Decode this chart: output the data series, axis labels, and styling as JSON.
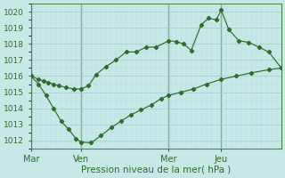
{
  "xlabel": "Pression niveau de la mer( hPa )",
  "background_color": "#c8e8e8",
  "grid_color_major": "#a0cccc",
  "grid_color_minor": "#b4dcdc",
  "line_color": "#2d6e2d",
  "ylim": [
    1011.5,
    1020.5
  ],
  "xlim": [
    0,
    100
  ],
  "yticks": [
    1012,
    1013,
    1014,
    1015,
    1016,
    1017,
    1018,
    1019,
    1020
  ],
  "day_positions": [
    0,
    20,
    55,
    76
  ],
  "day_labels": [
    "Mar",
    "Ven",
    "Mer",
    "Jeu"
  ],
  "upper_x": [
    0,
    3,
    5,
    7,
    9,
    11,
    14,
    17,
    20,
    23,
    26,
    30,
    34,
    38,
    42,
    46,
    50,
    55,
    58,
    61,
    64,
    68,
    71,
    74,
    76,
    79,
    83,
    87,
    91,
    95,
    100
  ],
  "upper_y": [
    1016.0,
    1015.8,
    1015.7,
    1015.6,
    1015.5,
    1015.4,
    1015.3,
    1015.2,
    1015.2,
    1015.4,
    1016.1,
    1016.6,
    1017.0,
    1017.5,
    1017.5,
    1017.8,
    1017.8,
    1018.2,
    1018.15,
    1018.0,
    1017.6,
    1019.2,
    1019.6,
    1019.5,
    1020.1,
    1018.9,
    1018.2,
    1018.1,
    1017.8,
    1017.5,
    1016.5
  ],
  "lower_x": [
    0,
    3,
    6,
    9,
    12,
    15,
    18,
    20,
    24,
    28,
    32,
    36,
    40,
    44,
    48,
    52,
    55,
    60,
    65,
    70,
    76,
    82,
    88,
    95,
    100
  ],
  "lower_y": [
    1016.0,
    1015.5,
    1014.8,
    1014.0,
    1013.2,
    1012.7,
    1012.1,
    1011.9,
    1011.85,
    1012.3,
    1012.8,
    1013.2,
    1013.6,
    1013.9,
    1014.2,
    1014.6,
    1014.8,
    1015.0,
    1015.2,
    1015.5,
    1015.8,
    1016.0,
    1016.2,
    1016.4,
    1016.5
  ]
}
